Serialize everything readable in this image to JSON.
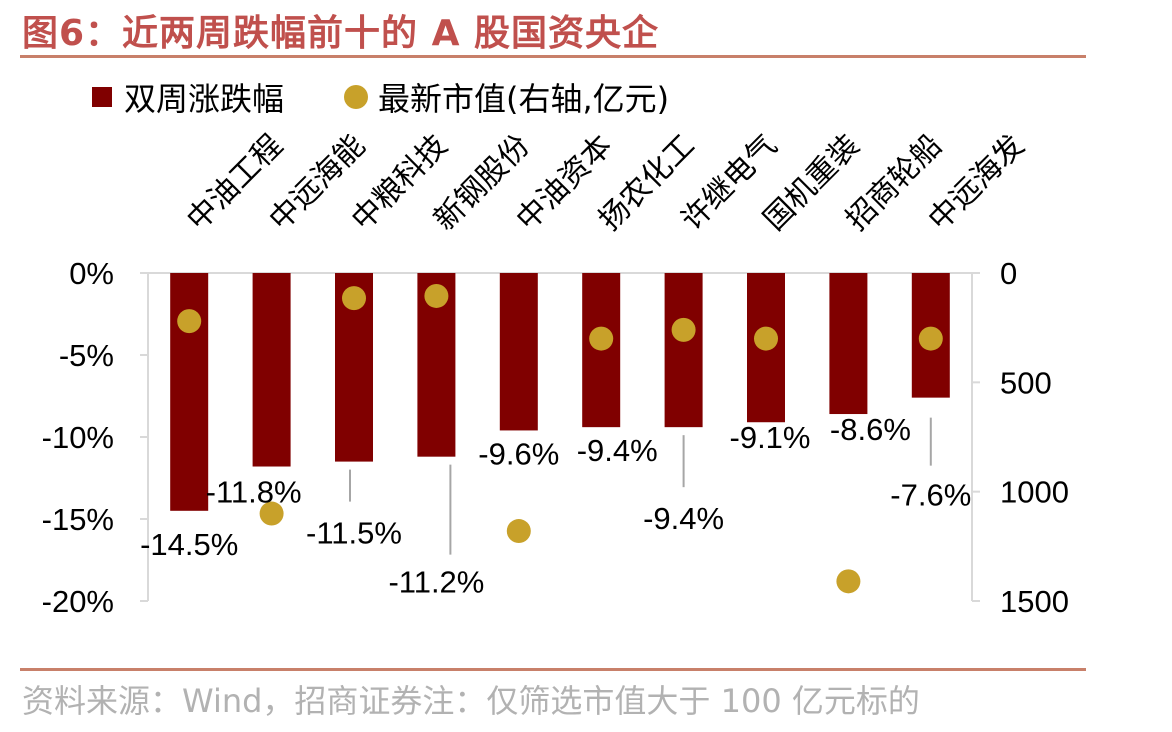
{
  "header": {
    "title": "图6：近两周跌幅前十的 A 股国资央企"
  },
  "footer": {
    "source": "资料来源：Wind，招商证券注：仅筛选市值大于 100 亿元标的"
  },
  "legend": {
    "bar_label": "双周涨跌幅",
    "dot_label": "最新市值(右轴,亿元)"
  },
  "colors": {
    "bar": "#800000",
    "dot": "#c8a12a",
    "title": "#c0504d",
    "rule": "#c8806a",
    "source": "#b2b2b2"
  },
  "chart_data": {
    "type": "bar",
    "title": "图6：近两周跌幅前十的 A 股国资央企",
    "categories": [
      "中油工程",
      "中远海能",
      "中粮科技",
      "新钢股份",
      "中油资本",
      "扬农化工",
      "许继电气",
      "国机重装",
      "招商轮船",
      "中远海发"
    ],
    "series": [
      {
        "name": "双周涨跌幅",
        "axis": "left",
        "unit": "%",
        "values": [
          -14.5,
          -11.8,
          -11.5,
          -11.2,
          -9.6,
          -9.4,
          -9.4,
          -9.1,
          -8.6,
          -7.6
        ]
      },
      {
        "name": "最新市值(右轴,亿元)",
        "axis": "right",
        "unit": "亿元",
        "marker": "dot",
        "values": [
          220,
          1100,
          115,
          105,
          1180,
          300,
          260,
          300,
          1410,
          300
        ]
      }
    ],
    "bar_labels": [
      "-14.5%",
      "-11.8%",
      "-11.5%",
      "-11.2%",
      "-9.6%",
      "-9.4%",
      "-9.4%",
      "-9.1%",
      "-8.6%",
      "-7.6%"
    ],
    "y_left": {
      "ylim": [
        -20,
        0
      ],
      "ticks": [
        0,
        -5,
        -10,
        -15,
        -20
      ],
      "tick_labels": [
        "0%",
        "-5%",
        "-10%",
        "-15%",
        "-20%"
      ]
    },
    "y_right": {
      "ylim": [
        0,
        1500
      ],
      "inverted": true,
      "ticks": [
        0,
        500,
        1000,
        1500
      ],
      "tick_labels": [
        "0",
        "500",
        "1000",
        "1500"
      ]
    },
    "legend_position": "top-left",
    "grid": false
  }
}
